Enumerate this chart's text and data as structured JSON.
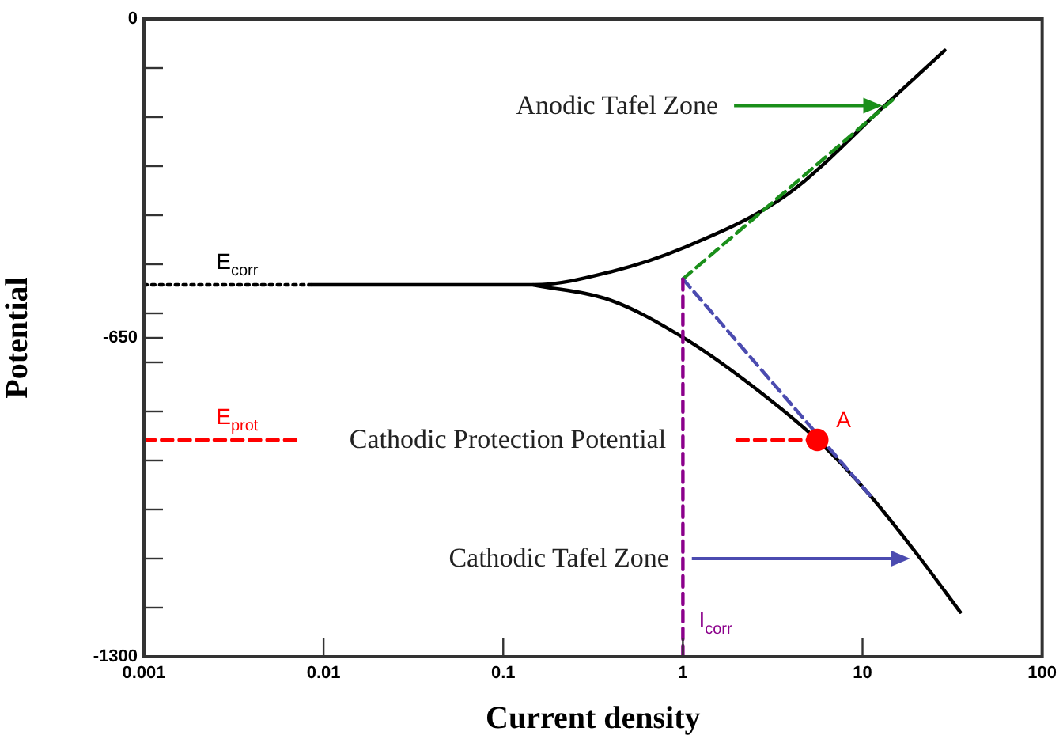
{
  "chart_data": {
    "type": "line",
    "xlabel": "Current density",
    "ylabel": "Potential",
    "log": "x",
    "legend": false,
    "marker": "none",
    "line_style": "solid",
    "xlim": [
      0.001,
      100
    ],
    "xticks": [
      0.001,
      0.01,
      0.1,
      1,
      10,
      100
    ],
    "ylim": [
      -1300,
      0
    ],
    "yticks": [
      0,
      {
        "value": -100,
        "label": null
      },
      {
        "value": -200,
        "label": null
      },
      {
        "value": -300,
        "label": null
      },
      {
        "value": -400,
        "label": null
      },
      {
        "value": -500,
        "label": null
      },
      {
        "value": -600,
        "label": null
      },
      -650,
      {
        "value": -700,
        "label": null
      },
      {
        "value": -800,
        "label": null
      },
      {
        "value": -900,
        "label": null
      },
      {
        "value": -1000,
        "label": null
      },
      {
        "value": -1100,
        "label": null
      },
      {
        "value": -1200,
        "label": null
      },
      -1300
    ],
    "series": [
      {
        "color": "#000000",
        "x": [
          0.0086,
          0.147,
          0.4,
          1,
          3.8,
          13.8,
          28.7
        ],
        "values": [
          -542,
          -542,
          -515,
          -467,
          -358,
          -171,
          -64
        ]
      },
      {
        "color": "#000000",
        "x": [
          0.147,
          0.4,
          1,
          2.2,
          5.6,
          11,
          21,
          35
        ],
        "values": [
          -542,
          -574,
          -649,
          -736,
          -858,
          -971,
          -1100,
          -1209
        ]
      },
      {
        "color": "#1a8f1a",
        "line_style": "dashed",
        "x": [
          1,
          14.7
        ],
        "values": [
          -530,
          -165
        ]
      },
      {
        "color": "#4b4bb0",
        "line_style": "dashed",
        "x": [
          1,
          11
        ],
        "values": [
          -530,
          -971
        ]
      },
      {
        "color": "#000000",
        "line_style": "dotted",
        "x": [
          0.001,
          0.0086
        ],
        "values": [
          -542,
          -542
        ]
      },
      {
        "color": "#ff0000",
        "line_style": "dashed",
        "x": [
          0.001,
          0.007,
          0.1,
          2,
          5.6
        ],
        "values": [
          -858,
          -858,
          null,
          -858,
          -858
        ]
      },
      {
        "color": "#8b008b",
        "line_style": "dashed",
        "x": [
          1,
          1
        ],
        "values": [
          -530,
          -1300
        ]
      },
      {
        "type": "scatter",
        "marker": "circle",
        "color": "#ff0000",
        "x": [
          5.6
        ],
        "values": [
          -858
        ]
      }
    ],
    "annotations": [
      "Anodic Tafel Zone",
      "Cathodic Protection Potential",
      "Cathodic Tafel Zone",
      {
        "text": "E$_{corr}$",
        "x": 0.0033,
        "y": -542
      },
      {
        "text": "E$_{prot}$",
        "x": 0.0033,
        "y": -858
      },
      {
        "text": "I$_{corr}$",
        "x": 1,
        "y": -1240
      },
      {
        "text": "A",
        "x": 5.6,
        "y": -858
      }
    ]
  }
}
